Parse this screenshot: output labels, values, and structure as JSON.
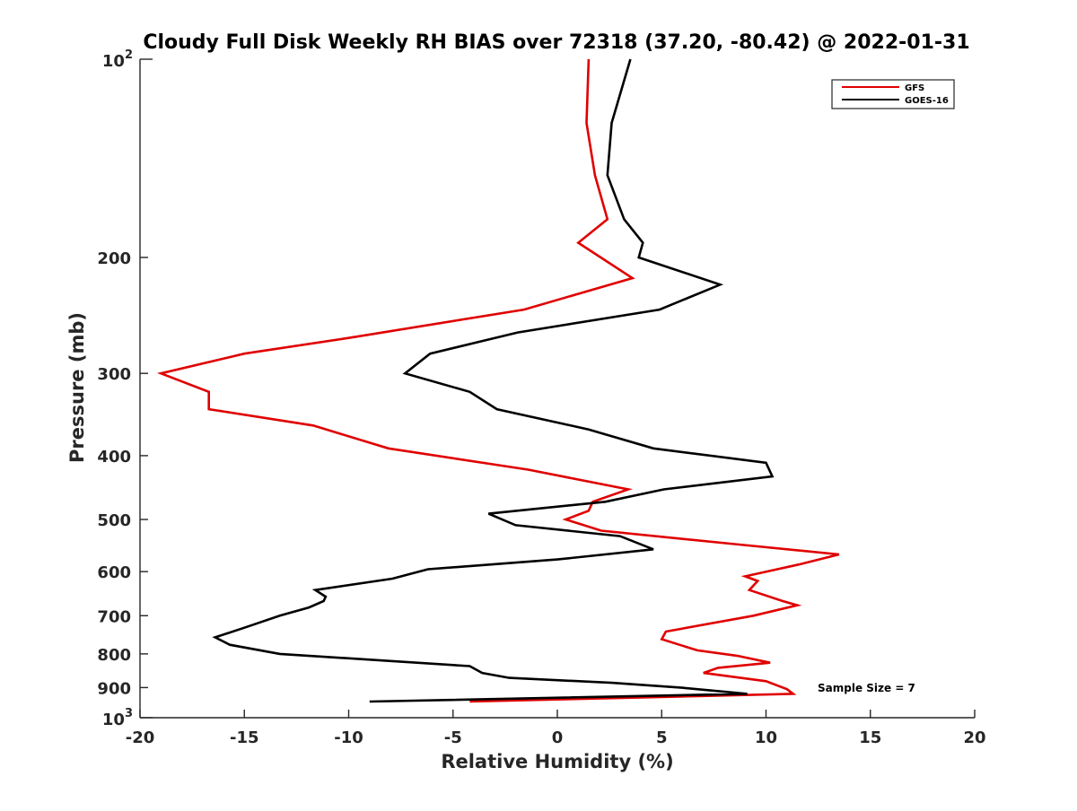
{
  "chart_data": {
    "type": "line",
    "title": "Cloudy Full Disk Weekly RH BIAS over 72318 (37.20, -80.42) @ 2022-01-31",
    "xlabel": "Relative Humidity (%)",
    "ylabel": "Pressure (mb)",
    "xlim": [
      -20,
      20
    ],
    "ylim": [
      100,
      1000
    ],
    "y_scale": "log",
    "y_reversed": true,
    "x_ticks": [
      -20,
      -15,
      -10,
      -5,
      0,
      5,
      10,
      15,
      20
    ],
    "x_tick_labels": [
      "-20",
      "-15",
      "-10",
      "-5",
      "0",
      "5",
      "10",
      "15",
      "20"
    ],
    "y_ticks": [
      200,
      300,
      400,
      500,
      600,
      700,
      800,
      900
    ],
    "y_tick_labels": [
      "200",
      "300",
      "400",
      "500",
      "600",
      "700",
      "800",
      "900"
    ],
    "y_decade_labels": [
      {
        "value": 100,
        "base": "10",
        "exp": "2"
      },
      {
        "value": 1000,
        "base": "10",
        "exp": "3"
      }
    ],
    "legend_position": "top-right",
    "annotation": "Sample Size = 7",
    "series": [
      {
        "name": "GFS",
        "color": "#e00000",
        "points": [
          [
            1.5,
            100
          ],
          [
            1.4,
            125
          ],
          [
            1.8,
            150
          ],
          [
            2.4,
            175
          ],
          [
            1.0,
            190
          ],
          [
            3.6,
            215
          ],
          [
            -1.6,
            240
          ],
          [
            -10.0,
            265
          ],
          [
            -15.0,
            280
          ],
          [
            -19.0,
            300
          ],
          [
            -16.7,
            320
          ],
          [
            -16.7,
            340
          ],
          [
            -11.7,
            360
          ],
          [
            -8.1,
            390
          ],
          [
            -1.4,
            420
          ],
          [
            3.4,
            450
          ],
          [
            1.7,
            470
          ],
          [
            1.5,
            485
          ],
          [
            0.4,
            500
          ],
          [
            2.1,
            520
          ],
          [
            8.5,
            545
          ],
          [
            13.5,
            565
          ],
          [
            11.6,
            585
          ],
          [
            9.0,
            610
          ],
          [
            9.6,
            620
          ],
          [
            9.2,
            640
          ],
          [
            10.8,
            665
          ],
          [
            11.5,
            675
          ],
          [
            9.4,
            700
          ],
          [
            5.2,
            740
          ],
          [
            5.0,
            760
          ],
          [
            6.7,
            790
          ],
          [
            8.6,
            805
          ],
          [
            10.2,
            825
          ],
          [
            7.7,
            840
          ],
          [
            7.0,
            855
          ],
          [
            10.0,
            880
          ],
          [
            11.0,
            905
          ],
          [
            11.3,
            920
          ],
          [
            -4.2,
            945
          ]
        ]
      },
      {
        "name": "GOES-16",
        "color": "#000000",
        "points": [
          [
            3.5,
            100
          ],
          [
            2.6,
            125
          ],
          [
            2.4,
            150
          ],
          [
            3.2,
            175
          ],
          [
            4.1,
            190
          ],
          [
            3.9,
            200
          ],
          [
            7.8,
            220
          ],
          [
            4.9,
            240
          ],
          [
            -1.9,
            260
          ],
          [
            -6.1,
            280
          ],
          [
            -7.3,
            300
          ],
          [
            -4.2,
            320
          ],
          [
            -2.9,
            340
          ],
          [
            1.5,
            365
          ],
          [
            4.6,
            390
          ],
          [
            10.0,
            410
          ],
          [
            10.3,
            430
          ],
          [
            5.1,
            450
          ],
          [
            2.3,
            470
          ],
          [
            -3.3,
            490
          ],
          [
            -2.0,
            510
          ],
          [
            3.0,
            530
          ],
          [
            4.6,
            555
          ],
          [
            0.0,
            575
          ],
          [
            -6.2,
            595
          ],
          [
            -7.9,
            615
          ],
          [
            -11.6,
            640
          ],
          [
            -11.1,
            655
          ],
          [
            -11.2,
            665
          ],
          [
            -11.9,
            680
          ],
          [
            -13.3,
            700
          ],
          [
            -15.0,
            730
          ],
          [
            -16.4,
            755
          ],
          [
            -15.7,
            775
          ],
          [
            -13.3,
            800
          ],
          [
            -4.2,
            835
          ],
          [
            -3.6,
            855
          ],
          [
            -2.3,
            870
          ],
          [
            2.6,
            885
          ],
          [
            5.9,
            900
          ],
          [
            7.5,
            910
          ],
          [
            9.1,
            920
          ],
          [
            -9.0,
            945
          ]
        ]
      }
    ]
  }
}
